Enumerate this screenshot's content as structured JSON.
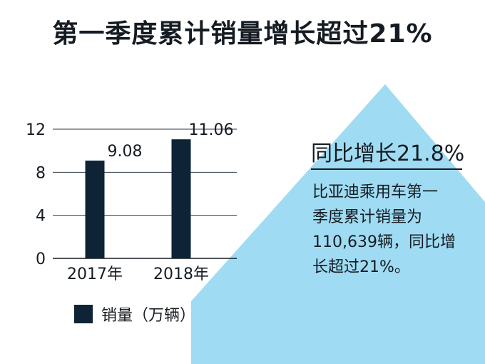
{
  "title": "第一季度累计销量增长超过21%",
  "colors": {
    "bar": "#0f2337",
    "arrow": "#9fdcf3",
    "text": "#151b22",
    "grid": "#2c3440"
  },
  "stat": {
    "heading": "同比增长21.8%",
    "lines": [
      "比亚迪乘用车第一",
      "季度累计销量为",
      "110,639辆，同比增",
      "长超过21%。"
    ]
  },
  "legend": {
    "label": "销量（万辆）"
  },
  "chart_data": {
    "type": "bar",
    "categories": [
      "2017年",
      "2018年"
    ],
    "series": [
      {
        "name": "销量（万辆）",
        "values": [
          9.08,
          11.06
        ]
      }
    ],
    "data_labels": [
      "9.08",
      "11.06"
    ],
    "yticks": [
      0,
      4,
      8,
      12
    ],
    "ylim": [
      0,
      12
    ],
    "grid": true,
    "legend": "bottom-left"
  }
}
